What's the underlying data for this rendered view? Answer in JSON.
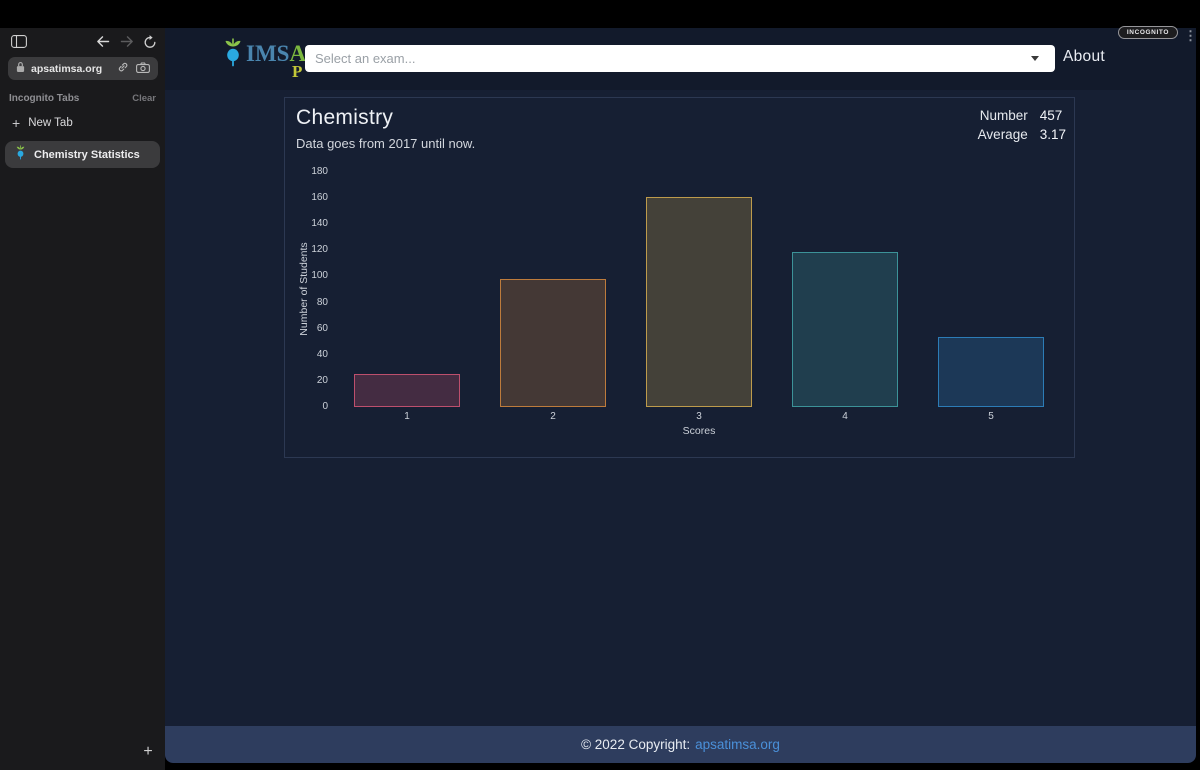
{
  "browser": {
    "url": "apsatimsa.org",
    "incognito_label": "INCOGNITO",
    "tabs_section_label": "Incognito Tabs",
    "clear_label": "Clear",
    "new_tab_label": "New Tab",
    "tab_title": "Chemistry Statistics",
    "add_tab_glyph": "+",
    "menu_dots_glyph": "⋮"
  },
  "header": {
    "logo": {
      "ims": "IMS",
      "a": "A",
      "p": "P"
    },
    "select_placeholder": "Select an exam...",
    "about_label": "About"
  },
  "card": {
    "title": "Chemistry",
    "subtitle": "Data goes from 2017 until now.",
    "stats": {
      "number_label": "Number",
      "number_value": "457",
      "average_label": "Average",
      "average_value": "3.17"
    }
  },
  "footer": {
    "text": "© 2022 Copyright:",
    "link": "apsatimsa.org"
  },
  "colors": {
    "page_bg": "#161f33",
    "navbar_bg": "#121a2b",
    "footer_bg": "#2e3d5e",
    "card_border": "#2c3852",
    "link_blue": "#4a90d9",
    "logo_blue": "#4a85ae",
    "logo_green": "#7cb83f",
    "logo_yellow": "#c2c838",
    "radish_leaf": "#8bc34a",
    "radish_bulb": "#2aa9e0"
  },
  "chart_data": {
    "type": "bar",
    "categories": [
      "1",
      "2",
      "3",
      "4",
      "5"
    ],
    "values": [
      25,
      98,
      161,
      119,
      54
    ],
    "title": "Chemistry",
    "xlabel": "Scores",
    "ylabel": "Number of Students",
    "ylim": [
      0,
      180
    ],
    "ytick_step": 20,
    "grid": false,
    "legend": "none",
    "bar_fill_colors": [
      "rgba(255,99,132,0.2)",
      "rgba(255,159,64,0.2)",
      "rgba(255,205,86,0.2)",
      "rgba(75,192,192,0.2)",
      "rgba(54,162,235,0.2)"
    ],
    "bar_border_colors": [
      "rgba(255,99,132,0.65)",
      "rgba(255,159,64,0.65)",
      "rgba(255,205,86,0.65)",
      "rgba(75,192,192,0.65)",
      "rgba(54,162,235,0.65)"
    ]
  }
}
